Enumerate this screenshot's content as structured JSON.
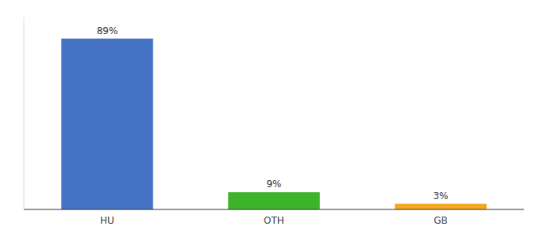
{
  "chart_data": {
    "type": "bar",
    "categories": [
      "HU",
      "OTH",
      "GB"
    ],
    "values": [
      89,
      9,
      3
    ],
    "value_labels": [
      "89%",
      "9%",
      "3%"
    ],
    "colors": [
      "#4472c4",
      "#3db32b",
      "#f5a623"
    ],
    "ylim": [
      0,
      100
    ],
    "data_labels": true,
    "tick_labels": "x",
    "grid": false
  }
}
